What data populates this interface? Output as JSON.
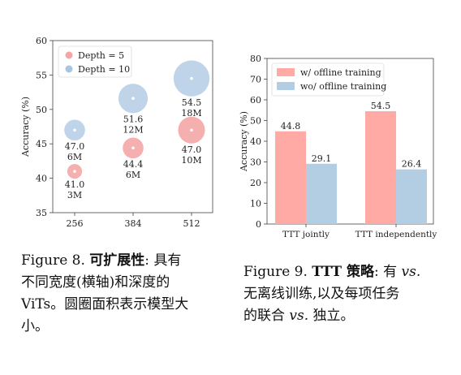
{
  "figure8": {
    "chart_data": {
      "type": "scatter",
      "variant": "bubble",
      "xlabel": "",
      "ylabel": "Accuracy (%)",
      "categories": [
        "256",
        "384",
        "512"
      ],
      "ylim": [
        35,
        60
      ],
      "yticks": [
        "35",
        "40",
        "45",
        "50",
        "55",
        "60"
      ],
      "legend_position": "top-left",
      "series": [
        {
          "name": "Depth = 5",
          "color": "#f4a6a6",
          "points": [
            {
              "x": "256",
              "y": 41.0,
              "label": "41.0",
              "size_label": "3M",
              "size": 3
            },
            {
              "x": "384",
              "y": 44.4,
              "label": "44.4",
              "size_label": "6M",
              "size": 6
            },
            {
              "x": "512",
              "y": 47.0,
              "label": "47.0",
              "size_label": "10M",
              "size": 10
            }
          ]
        },
        {
          "name": "Depth = 10",
          "color": "#a9c5e0",
          "points": [
            {
              "x": "256",
              "y": 47.0,
              "label": "47.0",
              "size_label": "6M",
              "size": 6
            },
            {
              "x": "384",
              "y": 51.6,
              "label": "51.6",
              "size_label": "12M",
              "size": 12
            },
            {
              "x": "512",
              "y": 54.5,
              "label": "54.5",
              "size_label": "18M",
              "size": 18
            }
          ]
        }
      ]
    },
    "caption": {
      "num": "Figure 8.",
      "title": "可扩展性",
      "colon": ":",
      "line1_rest": "具有",
      "line2": "不同宽度(横轴)和深度的",
      "line3": "ViTs。圆圈面积表示模型大",
      "line4": "小。"
    }
  },
  "figure9": {
    "chart_data": {
      "type": "bar",
      "xlabel": "",
      "ylabel": "Accuracy (%)",
      "categories": [
        "TTT jointly",
        "TTT independently"
      ],
      "ylim": [
        0,
        80
      ],
      "yticks": [
        "0",
        "10",
        "20",
        "30",
        "40",
        "50",
        "60",
        "70",
        "80"
      ],
      "legend_position": "top-left",
      "series": [
        {
          "name": "w/ offline training",
          "color": "#ffaaa5",
          "values": [
            44.8,
            54.5
          ],
          "labels": [
            "44.8",
            "54.5"
          ]
        },
        {
          "name": "wo/ offline training",
          "color": "#b3cde3",
          "values": [
            29.1,
            26.4
          ],
          "labels": [
            "29.1",
            "26.4"
          ]
        }
      ]
    },
    "caption": {
      "num": "Figure 9.",
      "title": "TTT 策略",
      "colon": ":",
      "line1_rest": "有",
      "vs": "vs.",
      "line2": "无离线训练,以及每项任务",
      "line3_pre": "的联合",
      "line3_post": "独立。"
    }
  }
}
